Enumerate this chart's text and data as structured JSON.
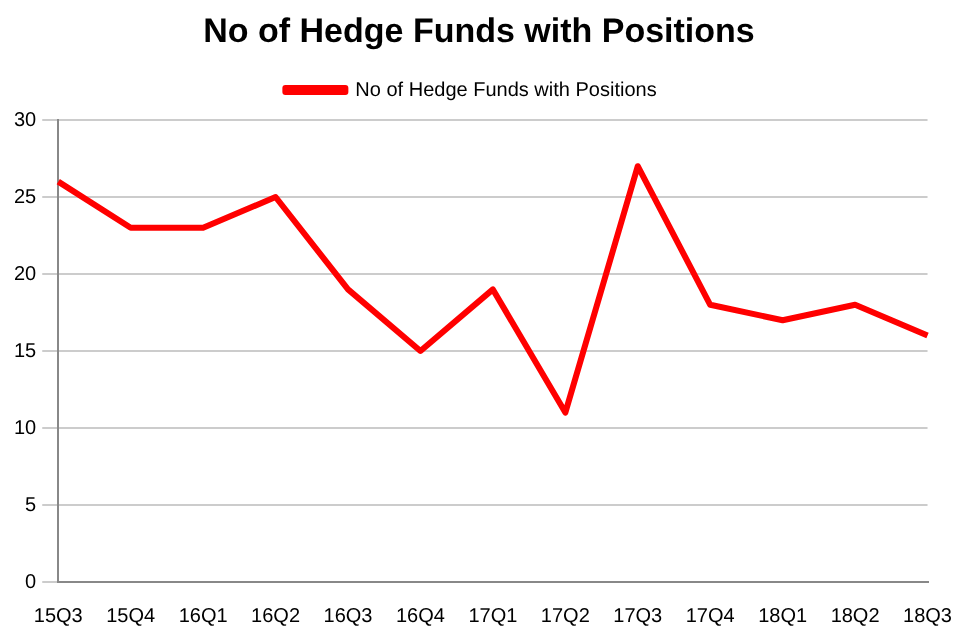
{
  "chart_data": {
    "type": "line",
    "title": "No of Hedge Funds with Positions",
    "categories": [
      "15Q3",
      "15Q4",
      "16Q1",
      "16Q2",
      "16Q3",
      "16Q4",
      "17Q1",
      "17Q2",
      "17Q3",
      "17Q4",
      "18Q1",
      "18Q2",
      "18Q3"
    ],
    "series": [
      {
        "name": "No of Hedge Funds with Positions",
        "color": "#ff0000",
        "values": [
          26,
          23,
          23,
          25,
          19,
          15,
          19,
          11,
          27,
          18,
          17,
          18,
          16
        ]
      }
    ],
    "ylim": [
      0,
      30
    ],
    "yticks": [
      0,
      5,
      10,
      15,
      20,
      25,
      30
    ],
    "grid": "y",
    "legend": "top",
    "marker": "none",
    "line_style": "solid"
  }
}
